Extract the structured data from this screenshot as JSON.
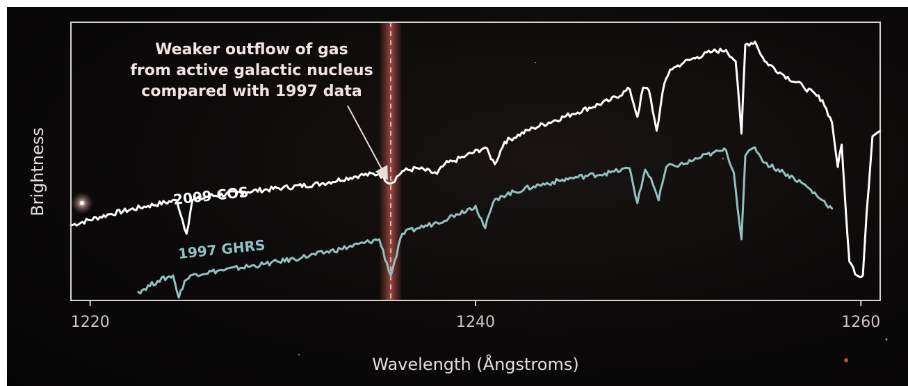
{
  "chart_data": {
    "type": "line",
    "title": "",
    "xlabel": "Wavelength (Ångstroms)",
    "ylabel": "Brightness",
    "xlim": [
      1219,
      1261
    ],
    "ylim": [
      0,
      10
    ],
    "xticks": [
      1220,
      1240,
      1260
    ],
    "xtick_labels": [
      "1220",
      "1240",
      "1260"
    ],
    "grid": false,
    "highlight": {
      "wavelength": 1235.6,
      "halfwidth": 0.55,
      "color": "#b4544c"
    },
    "annotation": {
      "lines": [
        "Weaker outflow of gas",
        "from active galactic nucleus",
        "compared with 1997 data"
      ],
      "target": {
        "x": 1235.6,
        "y": 4.2
      }
    },
    "series": [
      {
        "name": "2009 COS",
        "color": "#ffffff",
        "x": [
          1219.0,
          1221.0,
          1223.0,
          1224.5,
          1225.0,
          1225.3,
          1225.7,
          1226.2,
          1228.0,
          1230.0,
          1232.0,
          1234.0,
          1235.0,
          1235.6,
          1236.2,
          1237.0,
          1238.0,
          1238.4,
          1238.8,
          1239.5,
          1240.5,
          1241.0,
          1241.5,
          1243.0,
          1245.0,
          1247.0,
          1248.0,
          1248.4,
          1248.7,
          1249.0,
          1249.4,
          1249.8,
          1250.1,
          1250.4,
          1250.8,
          1251.5,
          1252.3,
          1253.0,
          1253.5,
          1253.8,
          1254.0,
          1254.5,
          1255.0,
          1256.0,
          1257.0,
          1258.0,
          1258.5,
          1258.8,
          1259.0,
          1259.2,
          1259.4,
          1259.8,
          1260.1,
          1260.3,
          1260.6,
          1261.0
        ],
        "values": [
          2.7,
          3.1,
          3.4,
          3.6,
          2.4,
          3.6,
          3.65,
          3.75,
          3.9,
          4.05,
          4.2,
          4.5,
          4.55,
          4.2,
          4.65,
          4.75,
          4.55,
          4.9,
          5.0,
          5.2,
          5.5,
          4.9,
          5.7,
          6.2,
          6.7,
          7.2,
          7.6,
          6.6,
          7.65,
          7.55,
          6.1,
          7.8,
          8.3,
          8.4,
          8.55,
          8.75,
          8.95,
          9.0,
          8.6,
          6.0,
          9.2,
          9.3,
          8.6,
          8.1,
          7.7,
          7.2,
          6.4,
          4.8,
          5.6,
          3.4,
          1.4,
          0.9,
          0.9,
          3.2,
          5.9,
          6.1
        ]
      },
      {
        "name": "1997 GHRS",
        "color": "#8fc2c0",
        "x": [
          1222.5,
          1223.5,
          1224.3,
          1224.6,
          1224.9,
          1225.4,
          1227.0,
          1229.0,
          1231.0,
          1233.0,
          1235.0,
          1235.6,
          1236.2,
          1237.0,
          1238.0,
          1239.0,
          1240.0,
          1240.5,
          1240.9,
          1241.3,
          1243.0,
          1245.0,
          1247.0,
          1248.0,
          1248.4,
          1248.8,
          1249.1,
          1249.5,
          1249.9,
          1250.3,
          1250.8,
          1251.5,
          1252.3,
          1253.0,
          1253.4,
          1253.8,
          1254.0,
          1254.5,
          1255.0,
          1256.0,
          1257.0,
          1258.0,
          1258.5
        ],
        "values": [
          0.3,
          0.7,
          0.9,
          0.1,
          0.7,
          0.95,
          1.1,
          1.3,
          1.55,
          1.85,
          2.2,
          0.9,
          2.4,
          2.6,
          2.8,
          3.1,
          3.4,
          2.6,
          3.5,
          3.75,
          4.1,
          4.4,
          4.6,
          4.75,
          3.5,
          4.7,
          4.4,
          3.6,
          4.8,
          4.85,
          4.9,
          5.1,
          5.3,
          5.4,
          4.6,
          2.2,
          5.2,
          5.5,
          4.95,
          4.6,
          4.2,
          3.6,
          3.3
        ]
      }
    ]
  }
}
